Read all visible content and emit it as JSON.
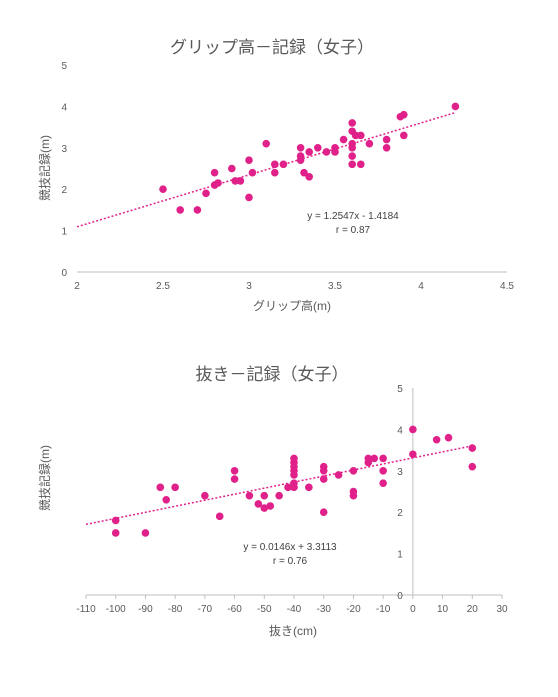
{
  "chart_data": [
    {
      "type": "scatter",
      "title": "グリップ高－記録（女子）",
      "xlabel": "グリップ高(m)",
      "ylabel": "競技記録(m)",
      "xlim": [
        2,
        4.5
      ],
      "ylim": [
        0,
        5
      ],
      "xticks": [
        "2",
        "2.5",
        "3",
        "3.5",
        "4",
        "4.5"
      ],
      "yticks": [
        "0",
        "1",
        "2",
        "3",
        "4",
        "5"
      ],
      "grid": false,
      "color": "#e0218a",
      "points": [
        [
          2.5,
          2.0
        ],
        [
          2.6,
          1.5
        ],
        [
          2.7,
          1.5
        ],
        [
          2.75,
          1.9
        ],
        [
          2.8,
          2.4
        ],
        [
          2.8,
          2.1
        ],
        [
          2.82,
          2.15
        ],
        [
          2.9,
          2.5
        ],
        [
          2.92,
          2.2
        ],
        [
          2.95,
          2.2
        ],
        [
          3.0,
          1.8
        ],
        [
          3.0,
          2.7
        ],
        [
          3.02,
          2.4
        ],
        [
          3.1,
          3.1
        ],
        [
          3.15,
          2.4
        ],
        [
          3.15,
          2.6
        ],
        [
          3.2,
          2.6
        ],
        [
          3.3,
          3.0
        ],
        [
          3.3,
          2.8
        ],
        [
          3.3,
          2.7
        ],
        [
          3.32,
          2.4
        ],
        [
          3.35,
          2.3
        ],
        [
          3.35,
          2.9
        ],
        [
          3.4,
          3.0
        ],
        [
          3.45,
          2.9
        ],
        [
          3.5,
          3.0
        ],
        [
          3.5,
          2.9
        ],
        [
          3.55,
          3.2
        ],
        [
          3.6,
          3.6
        ],
        [
          3.6,
          3.4
        ],
        [
          3.6,
          3.1
        ],
        [
          3.6,
          3.0
        ],
        [
          3.6,
          2.8
        ],
        [
          3.6,
          2.6
        ],
        [
          3.62,
          3.3
        ],
        [
          3.65,
          3.3
        ],
        [
          3.65,
          2.6
        ],
        [
          3.7,
          3.1
        ],
        [
          3.8,
          3.0
        ],
        [
          3.8,
          3.2
        ],
        [
          3.88,
          3.75
        ],
        [
          3.9,
          3.8
        ],
        [
          3.9,
          3.3
        ],
        [
          4.2,
          4.0
        ]
      ],
      "trendline": {
        "slope": 1.2547,
        "intercept": -1.4184
      },
      "annotation": {
        "equation": "y = 1.2547x - 1.4184",
        "r": "r = 0.87"
      }
    },
    {
      "type": "scatter",
      "title": "抜き－記録（女子）",
      "xlabel": "抜き(cm)",
      "ylabel": "競技記録(m)",
      "xlim": [
        -110,
        30
      ],
      "ylim": [
        0,
        5
      ],
      "xticks": [
        "-110",
        "-100",
        "-90",
        "-80",
        "-70",
        "-60",
        "-50",
        "-40",
        "-30",
        "-20",
        "-10",
        "0",
        "10",
        "20",
        "30"
      ],
      "yticks": [
        "0",
        "1",
        "2",
        "3",
        "4",
        "5"
      ],
      "grid": false,
      "color": "#e0218a",
      "points": [
        [
          -100,
          1.8
        ],
        [
          -100,
          1.5
        ],
        [
          -90,
          1.5
        ],
        [
          -85,
          2.6
        ],
        [
          -83,
          2.3
        ],
        [
          -80,
          2.6
        ],
        [
          -70,
          2.4
        ],
        [
          -65,
          1.9
        ],
        [
          -60,
          3.0
        ],
        [
          -60,
          2.8
        ],
        [
          -55,
          2.4
        ],
        [
          -52,
          2.2
        ],
        [
          -50,
          2.4
        ],
        [
          -50,
          2.1
        ],
        [
          -48,
          2.15
        ],
        [
          -45,
          2.4
        ],
        [
          -42,
          2.6
        ],
        [
          -40,
          3.3
        ],
        [
          -40,
          3.2
        ],
        [
          -40,
          3.1
        ],
        [
          -40,
          3.0
        ],
        [
          -40,
          2.9
        ],
        [
          -40,
          2.7
        ],
        [
          -40,
          2.6
        ],
        [
          -35,
          2.6
        ],
        [
          -30,
          3.1
        ],
        [
          -30,
          3.0
        ],
        [
          -30,
          2.8
        ],
        [
          -30,
          2.0
        ],
        [
          -25,
          2.9
        ],
        [
          -20,
          3.0
        ],
        [
          -20,
          2.5
        ],
        [
          -20,
          2.4
        ],
        [
          -15,
          3.3
        ],
        [
          -15,
          3.2
        ],
        [
          -13,
          3.3
        ],
        [
          -10,
          3.3
        ],
        [
          -10,
          3.0
        ],
        [
          -10,
          2.7
        ],
        [
          0,
          4.0
        ],
        [
          0,
          3.4
        ],
        [
          8,
          3.75
        ],
        [
          12,
          3.8
        ],
        [
          20,
          3.55
        ],
        [
          20,
          3.1
        ]
      ],
      "trendline": {
        "slope": 0.0146,
        "intercept": 3.3113
      },
      "annotation": {
        "equation": "y = 0.0146x + 3.3113",
        "r": "r = 0.76"
      }
    }
  ]
}
